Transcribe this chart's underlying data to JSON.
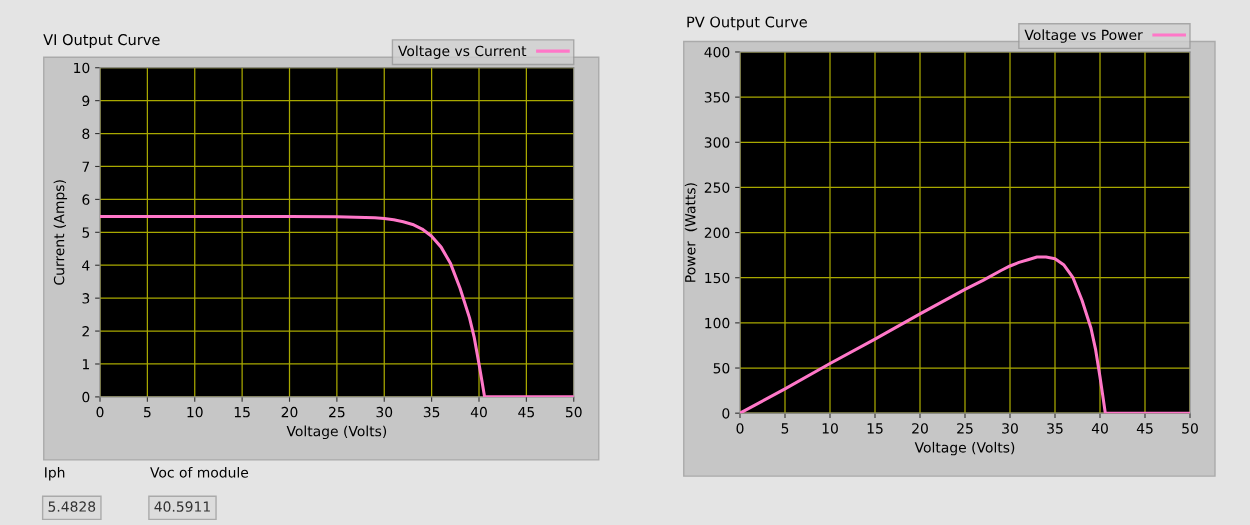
{
  "chart_data": [
    {
      "type": "line",
      "title": "VI Output Curve",
      "xlabel": "Voltage (Volts)",
      "ylabel": "Current (Amps)",
      "x": [
        0,
        5,
        10,
        15,
        20,
        25,
        27,
        29,
        30,
        31,
        32,
        33,
        34,
        35,
        36,
        37,
        38,
        39,
        39.5,
        40,
        40.3,
        40.59,
        41,
        45,
        50
      ],
      "series": [
        {
          "name": "Voltage vs Current",
          "color": "#ff77c8",
          "values": [
            5.48,
            5.48,
            5.48,
            5.48,
            5.48,
            5.47,
            5.46,
            5.44,
            5.42,
            5.38,
            5.32,
            5.24,
            5.1,
            4.88,
            4.55,
            4.05,
            3.3,
            2.4,
            1.8,
            1.0,
            0.5,
            0,
            0,
            0,
            0
          ]
        }
      ],
      "xlim": [
        0,
        50
      ],
      "xticks": [
        0,
        5,
        10,
        15,
        20,
        25,
        30,
        35,
        40,
        45,
        50
      ],
      "ylim": [
        0,
        10
      ],
      "yticks": [
        0,
        1,
        2,
        3,
        4,
        5,
        6,
        7,
        8,
        9,
        10
      ],
      "grid": true,
      "legend": "top right",
      "marker": "none",
      "line_style": "solid",
      "annotations": [
        "Iph",
        "5.4828",
        "Voc of module",
        "40.5911"
      ]
    },
    {
      "type": "line",
      "title": "PV Output Curve",
      "xlabel": "Voltage (Volts)",
      "ylabel": "Power  (Watts)",
      "x": [
        0,
        5,
        10,
        15,
        20,
        25,
        27,
        29,
        30,
        31,
        32,
        33,
        34,
        35,
        36,
        37,
        38,
        39,
        39.5,
        40,
        40.3,
        40.59,
        41,
        45,
        50
      ],
      "series": [
        {
          "name": "Voltage vs Power",
          "color": "#ff77c8",
          "values": [
            0,
            27,
            55,
            82,
            110,
            137,
            147,
            158,
            163,
            167,
            170,
            173,
            173,
            171,
            164,
            150,
            125,
            94,
            71,
            40,
            20,
            0,
            0,
            0,
            0
          ]
        }
      ],
      "xlim": [
        0,
        50
      ],
      "xticks": [
        0,
        5,
        10,
        15,
        20,
        25,
        30,
        35,
        40,
        45,
        50
      ],
      "ylim": [
        0,
        400
      ],
      "yticks": [
        0,
        50,
        100,
        150,
        200,
        250,
        300,
        350,
        400
      ],
      "grid": true,
      "legend": "top right",
      "marker": "none",
      "line_style": "solid"
    }
  ]
}
